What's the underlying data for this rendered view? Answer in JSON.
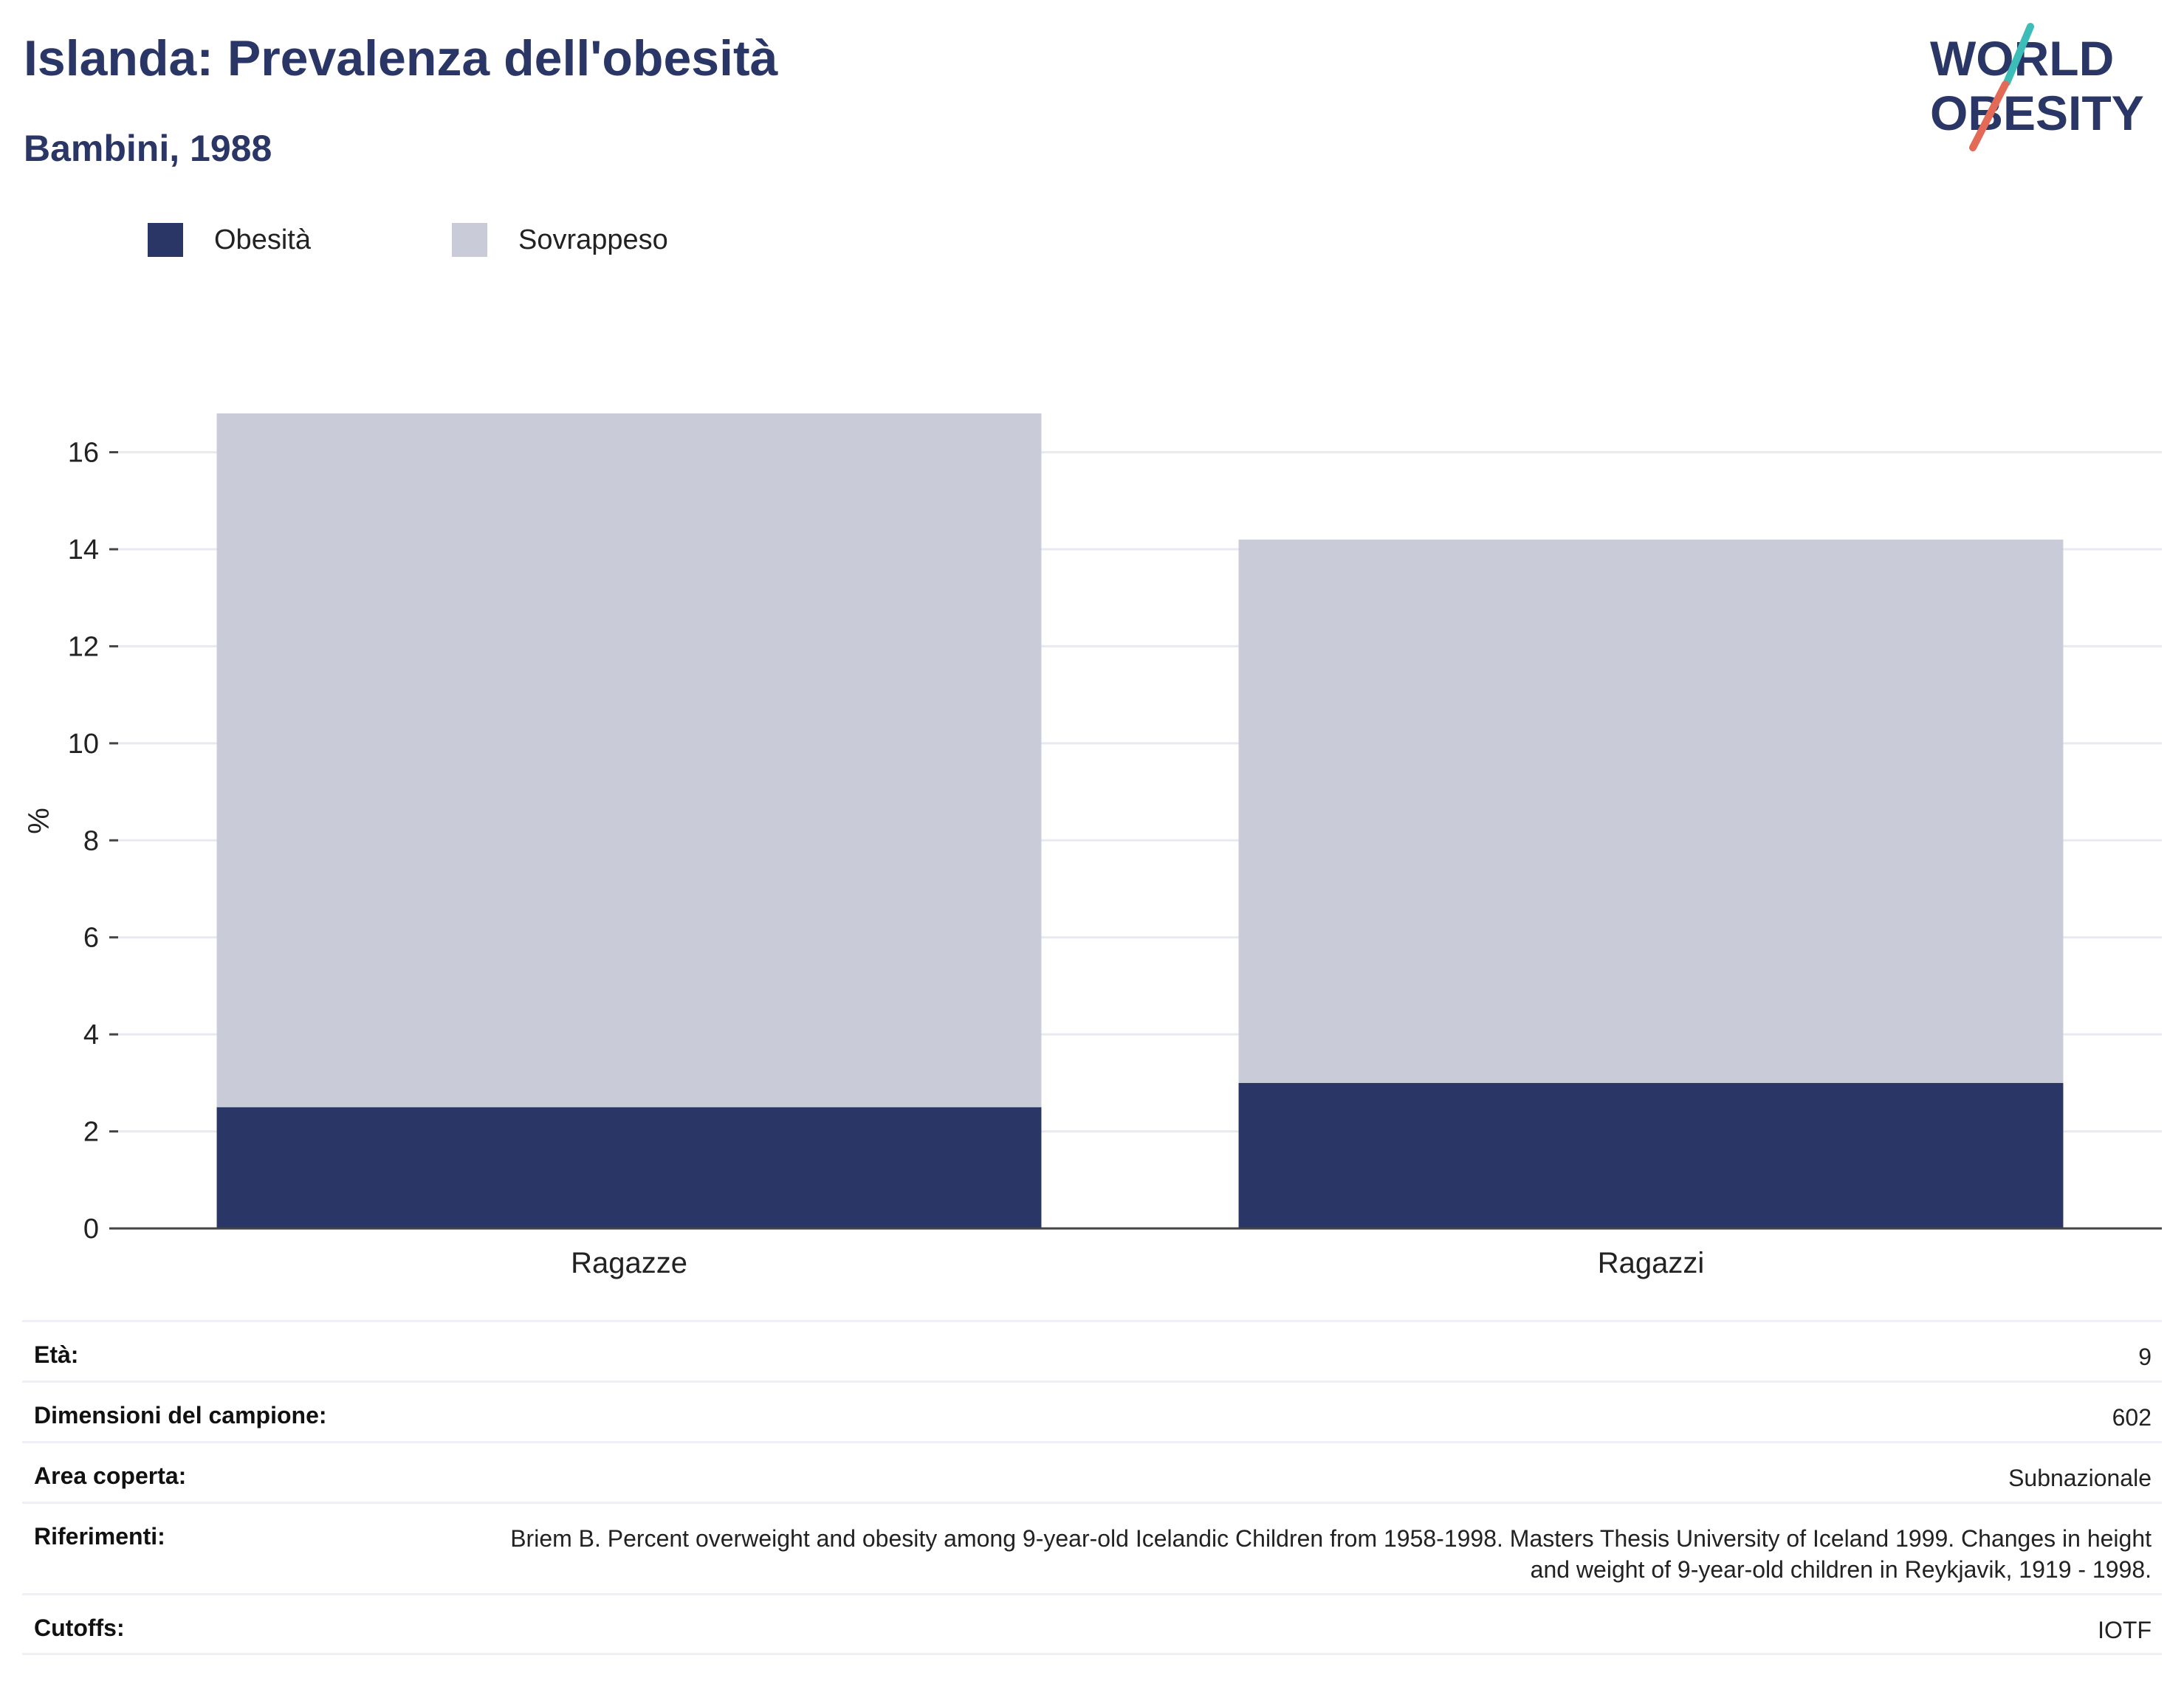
{
  "header": {
    "title": "Islanda: Prevalenza dell'obesità",
    "subtitle": "Bambini, 1988"
  },
  "logo": {
    "line1": "WORLD",
    "line2": "OBESITY"
  },
  "legend": [
    {
      "label": "Obesità",
      "color": "#2a3665"
    },
    {
      "label": "Sovrappeso",
      "color": "#c9ccd8"
    }
  ],
  "chart_data": {
    "type": "bar",
    "stacked": true,
    "categories": [
      "Ragazze",
      "Ragazzi"
    ],
    "series": [
      {
        "name": "Obesità",
        "values": [
          2.5,
          3.0
        ],
        "color": "#2a3665"
      },
      {
        "name": "Sovrappeso",
        "values": [
          14.3,
          11.2
        ],
        "color": "#c9ccd8"
      }
    ],
    "totals": [
      16.8,
      14.2
    ],
    "ylabel": "%",
    "ylim": [
      0,
      16.8
    ],
    "yticks": [
      0,
      2,
      4,
      6,
      8,
      10,
      12,
      14,
      16
    ],
    "grid": true,
    "legend_position": "top-left"
  },
  "details": [
    {
      "key": "Età:",
      "value": "9"
    },
    {
      "key": "Dimensioni del campione:",
      "value": "602"
    },
    {
      "key": "Area coperta:",
      "value": "Subnazionale"
    },
    {
      "key": "Riferimenti:",
      "value": "Briem B. Percent overweight and obesity among 9-year-old Icelandic Children from 1958-1998. Masters Thesis University of Iceland 1999. Changes in height and weight of 9-year-old children in Reykjavik, 1919 - 1998."
    },
    {
      "key": "Cutoffs:",
      "value": "IOTF"
    }
  ]
}
